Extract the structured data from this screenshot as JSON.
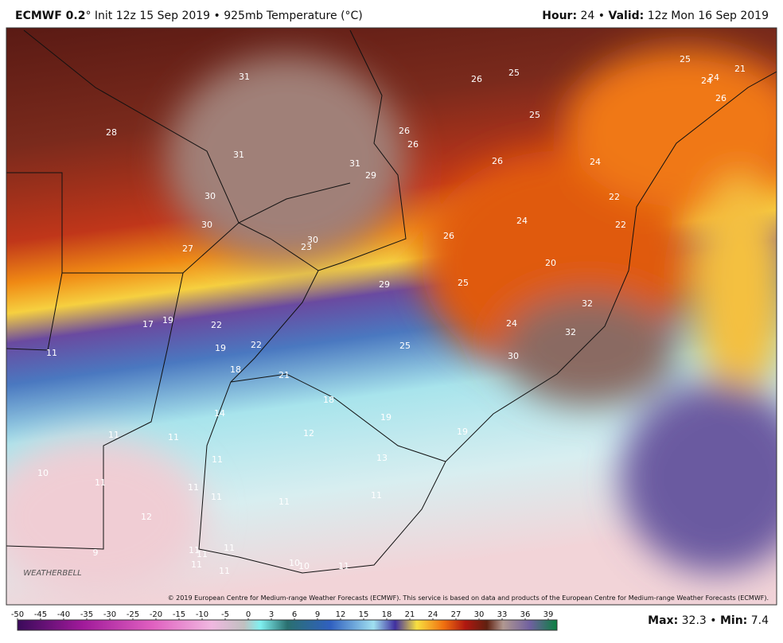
{
  "header": {
    "model": "ECMWF 0.2",
    "degree": "°",
    "title": "Init 12z 15 Sep 2019 • 925mb Temperature (°C)",
    "hour_label": "Hour:",
    "hour": "24",
    "separator": "•",
    "valid_label": "Valid:",
    "valid": "12z Mon 16 Sep 2019"
  },
  "map": {
    "labels": [
      "31",
      "28",
      "31",
      "31",
      "29",
      "30",
      "30",
      "27",
      "30",
      "23",
      "29",
      "26",
      "25",
      "26",
      "26",
      "25",
      "26",
      "24",
      "25",
      "24",
      "24",
      "21",
      "26",
      "22",
      "22",
      "24",
      "26",
      "20",
      "25",
      "32",
      "24",
      "32",
      "30",
      "25",
      "17",
      "19",
      "22",
      "19",
      "22",
      "18",
      "21",
      "18",
      "19",
      "19",
      "14",
      "12",
      "13",
      "11",
      "11",
      "11",
      "11",
      "10",
      "11",
      "11",
      "11",
      "11",
      "11",
      "12",
      "9",
      "11",
      "11",
      "11",
      "11",
      "11",
      "10",
      "10",
      "11"
    ],
    "copyright": "© 2019 European Centre for Medium-range Weather Forecasts (ECMWF). This service is based on data and products of the European Centre for Medium-range Weather Forecasts (ECMWF).",
    "logo": "WEATHERBELL"
  },
  "colorbar": {
    "ticks": [
      -50,
      -45,
      -40,
      -35,
      -30,
      -25,
      -20,
      -15,
      -10,
      -5,
      0,
      3,
      6,
      9,
      12,
      15,
      18,
      21,
      24,
      27,
      30,
      33,
      36,
      39
    ]
  },
  "stats": {
    "max_label": "Max:",
    "max": "32.3",
    "separator": "•",
    "min_label": "Min:",
    "min": "7.4"
  }
}
